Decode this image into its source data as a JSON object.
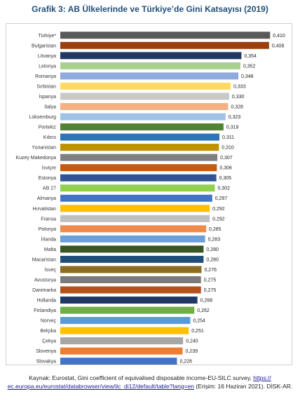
{
  "title": "Grafik 3: AB Ülkelerinde ve Türkiye’de Gini Katsayısı (2019)",
  "source": {
    "prefix": "Kaynak: Eurostat, Gini coefficient of equivalised disposable income-EU-SILC survey, ",
    "link": "https:// ec.europa.eu/eurostat/databrowser/view/ilc_di12/default/table?lang=en",
    "suffix": " (Erişim: 16 Haziran 2021). DİSK-AR."
  },
  "chart_data": {
    "type": "bar",
    "orientation": "horizontal",
    "title": "Grafik 3: AB Ülkelerinde ve Türkiye’de Gini Katsayısı (2019)",
    "xlabel": "",
    "ylabel": "",
    "grid": false,
    "categories": [
      "Türkiye*",
      "Bulgaristan",
      "Litvanya",
      "Letonya",
      "Romanya",
      "Sırbistan",
      "İspanya",
      "İtalya",
      "Lüksemburg",
      "Portekiz",
      "Kıbrıs",
      "Yunanistan",
      "Kuzey Makedonya",
      "İsviçre",
      "Estonya",
      "AB 27",
      "Almanya",
      "Hırvatistan",
      "Fransa",
      "Polonya",
      "İrlanda",
      "Malta",
      "Macaristan",
      "İsveç",
      "Avusturya",
      "Danimarka",
      "Hollanda",
      "Finlandiya",
      "Norveç",
      "Belçika",
      "Çekya",
      "Slovenya",
      "Slovakya"
    ],
    "values": [
      0.41,
      0.408,
      0.354,
      0.352,
      0.348,
      0.333,
      0.33,
      0.328,
      0.323,
      0.319,
      0.311,
      0.31,
      0.307,
      0.306,
      0.305,
      0.302,
      0.297,
      0.292,
      0.292,
      0.285,
      0.283,
      0.28,
      0.28,
      0.276,
      0.275,
      0.275,
      0.268,
      0.262,
      0.254,
      0.251,
      0.24,
      0.239,
      0.228
    ],
    "value_labels": [
      "0,410",
      "0,408",
      "0,354",
      "0,352",
      "0,348",
      "0,333",
      "0,330",
      "0,328",
      "0,323",
      "0,319",
      "0,311",
      "0,310",
      "0,307",
      "0,306",
      "0,305",
      "0,302",
      "0,297",
      "0,292",
      "0,292",
      "0,285",
      "0,283",
      "0,280",
      "0,280",
      "0,276",
      "0,275",
      "0,275",
      "0,268",
      "0,262",
      "0,254",
      "0,251",
      "0,240",
      "0,239",
      "0,228"
    ],
    "colors": [
      "#595959",
      "#9c3e0e",
      "#1f3864",
      "#a9d18e",
      "#8faadc",
      "#ffd966",
      "#c9c9c9",
      "#f4b183",
      "#9dc3e6",
      "#548235",
      "#2e75b6",
      "#bf9000",
      "#7f7f7f",
      "#c55a11",
      "#2f5597",
      "#92d050",
      "#4472c4",
      "#ffc000",
      "#bfbfbf",
      "#f08a4b",
      "#6f9fd8",
      "#375623",
      "#1f4e79",
      "#8c6d1f",
      "#7b7b7b",
      "#b4501a",
      "#203864",
      "#70ad47",
      "#5b9bd5",
      "#ffc000",
      "#a6a6a6",
      "#ed7d31",
      "#4472c4"
    ]
  }
}
